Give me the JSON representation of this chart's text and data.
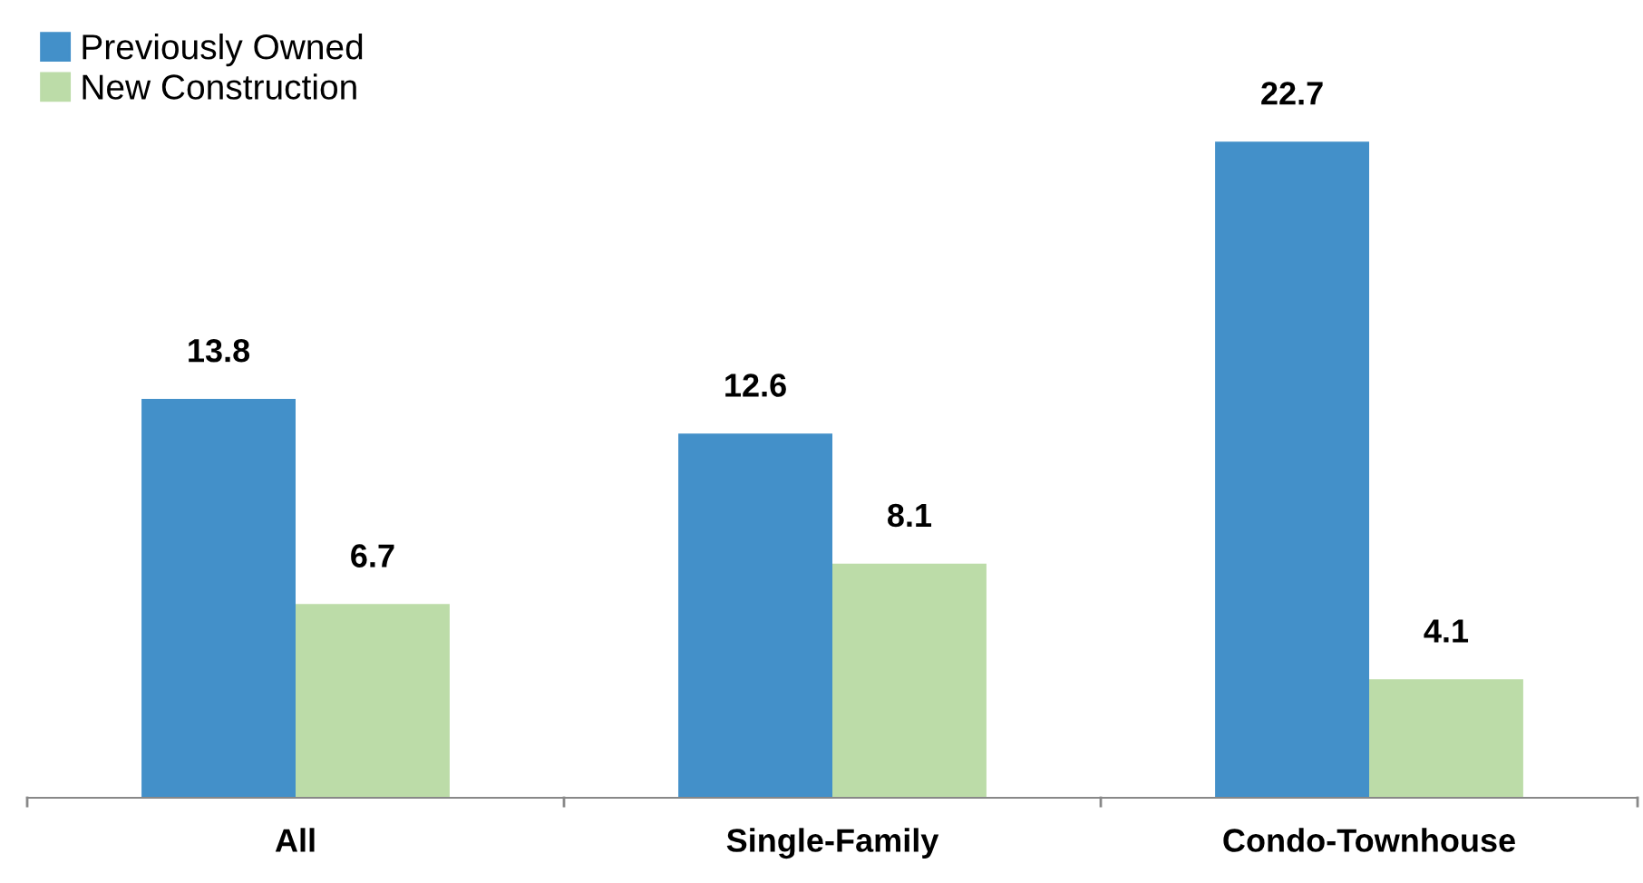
{
  "chart_data": {
    "type": "bar",
    "categories": [
      "All",
      "Single-Family",
      "Condo-Townhouse"
    ],
    "series": [
      {
        "name": "Previously Owned",
        "color": "#4390c9",
        "values": [
          13.8,
          12.6,
          22.7
        ]
      },
      {
        "name": "New Construction",
        "color": "#bcdca8",
        "values": [
          6.7,
          8.1,
          4.1
        ]
      }
    ],
    "data_labels": true,
    "legend": "top left"
  }
}
